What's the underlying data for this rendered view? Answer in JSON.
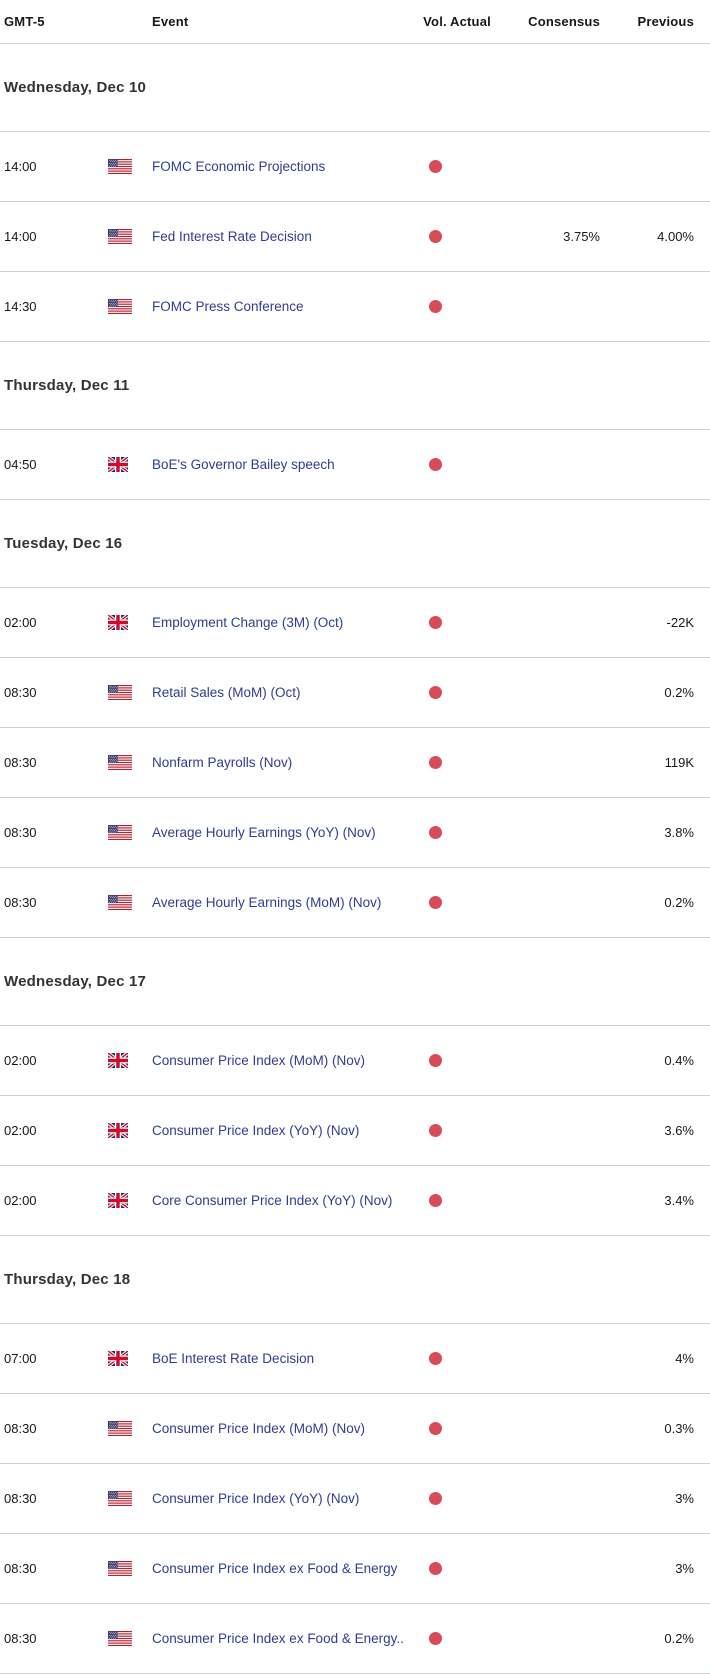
{
  "table": {
    "columns": {
      "time": "GMT-5",
      "event": "Event",
      "vol": "Vol.",
      "actual": "Actual",
      "consensus": "Consensus",
      "previous": "Previous"
    }
  },
  "colors": {
    "event_link": "#2e3d92",
    "volatility_high": "#d84b59",
    "divider": "#cbd0d4",
    "day_heading_text": "#333333",
    "value_text": "#16171b"
  },
  "icons": {
    "volatility_high": "filled-red-circle",
    "us": "us-flag",
    "gb": "uk-flag"
  },
  "sections": [
    {
      "day": "Wednesday, Dec 10",
      "rows": [
        {
          "time": "14:00",
          "country": "us",
          "event": "FOMC Economic Projections",
          "vol": "high",
          "actual": "",
          "consensus": "",
          "previous": ""
        },
        {
          "time": "14:00",
          "country": "us",
          "event": "Fed Interest Rate Decision",
          "vol": "high",
          "actual": "",
          "consensus": "3.75%",
          "previous": "4.00%"
        },
        {
          "time": "14:30",
          "country": "us",
          "event": "FOMC Press Conference",
          "vol": "high",
          "actual": "",
          "consensus": "",
          "previous": ""
        }
      ]
    },
    {
      "day": "Thursday, Dec 11",
      "rows": [
        {
          "time": "04:50",
          "country": "gb",
          "event": "BoE's Governor Bailey speech",
          "vol": "high",
          "actual": "",
          "consensus": "",
          "previous": ""
        }
      ]
    },
    {
      "day": "Tuesday, Dec 16",
      "rows": [
        {
          "time": "02:00",
          "country": "gb",
          "event": "Employment Change (3M) (Oct)",
          "vol": "high",
          "actual": "",
          "consensus": "",
          "previous": "-22K"
        },
        {
          "time": "08:30",
          "country": "us",
          "event": "Retail Sales (MoM) (Oct)",
          "vol": "high",
          "actual": "",
          "consensus": "",
          "previous": "0.2%"
        },
        {
          "time": "08:30",
          "country": "us",
          "event": "Nonfarm Payrolls (Nov)",
          "vol": "high",
          "actual": "",
          "consensus": "",
          "previous": "119K"
        },
        {
          "time": "08:30",
          "country": "us",
          "event": "Average Hourly Earnings (YoY) (Nov)",
          "vol": "high",
          "actual": "",
          "consensus": "",
          "previous": "3.8%"
        },
        {
          "time": "08:30",
          "country": "us",
          "event": "Average Hourly Earnings (MoM) (Nov)",
          "vol": "high",
          "actual": "",
          "consensus": "",
          "previous": "0.2%"
        }
      ]
    },
    {
      "day": "Wednesday, Dec 17",
      "rows": [
        {
          "time": "02:00",
          "country": "gb",
          "event": "Consumer Price Index (MoM) (Nov)",
          "vol": "high",
          "actual": "",
          "consensus": "",
          "previous": "0.4%"
        },
        {
          "time": "02:00",
          "country": "gb",
          "event": "Consumer Price Index (YoY) (Nov)",
          "vol": "high",
          "actual": "",
          "consensus": "",
          "previous": "3.6%"
        },
        {
          "time": "02:00",
          "country": "gb",
          "event": "Core Consumer Price Index (YoY) (Nov)",
          "vol": "high",
          "actual": "",
          "consensus": "",
          "previous": "3.4%"
        }
      ]
    },
    {
      "day": "Thursday, Dec 18",
      "rows": [
        {
          "time": "07:00",
          "country": "gb",
          "event": "BoE Interest Rate Decision",
          "vol": "high",
          "actual": "",
          "consensus": "",
          "previous": "4%"
        },
        {
          "time": "08:30",
          "country": "us",
          "event": "Consumer Price Index (MoM) (Nov)",
          "vol": "high",
          "actual": "",
          "consensus": "",
          "previous": "0.3%"
        },
        {
          "time": "08:30",
          "country": "us",
          "event": "Consumer Price Index (YoY) (Nov)",
          "vol": "high",
          "actual": "",
          "consensus": "",
          "previous": "3%"
        },
        {
          "time": "08:30",
          "country": "us",
          "event": "Consumer Price Index ex Food & Energy",
          "vol": "high",
          "actual": "",
          "consensus": "",
          "previous": "3%"
        },
        {
          "time": "08:30",
          "country": "us",
          "event": "Consumer Price Index ex Food & Energy..",
          "vol": "high",
          "actual": "",
          "consensus": "",
          "previous": "0.2%"
        }
      ]
    }
  ]
}
